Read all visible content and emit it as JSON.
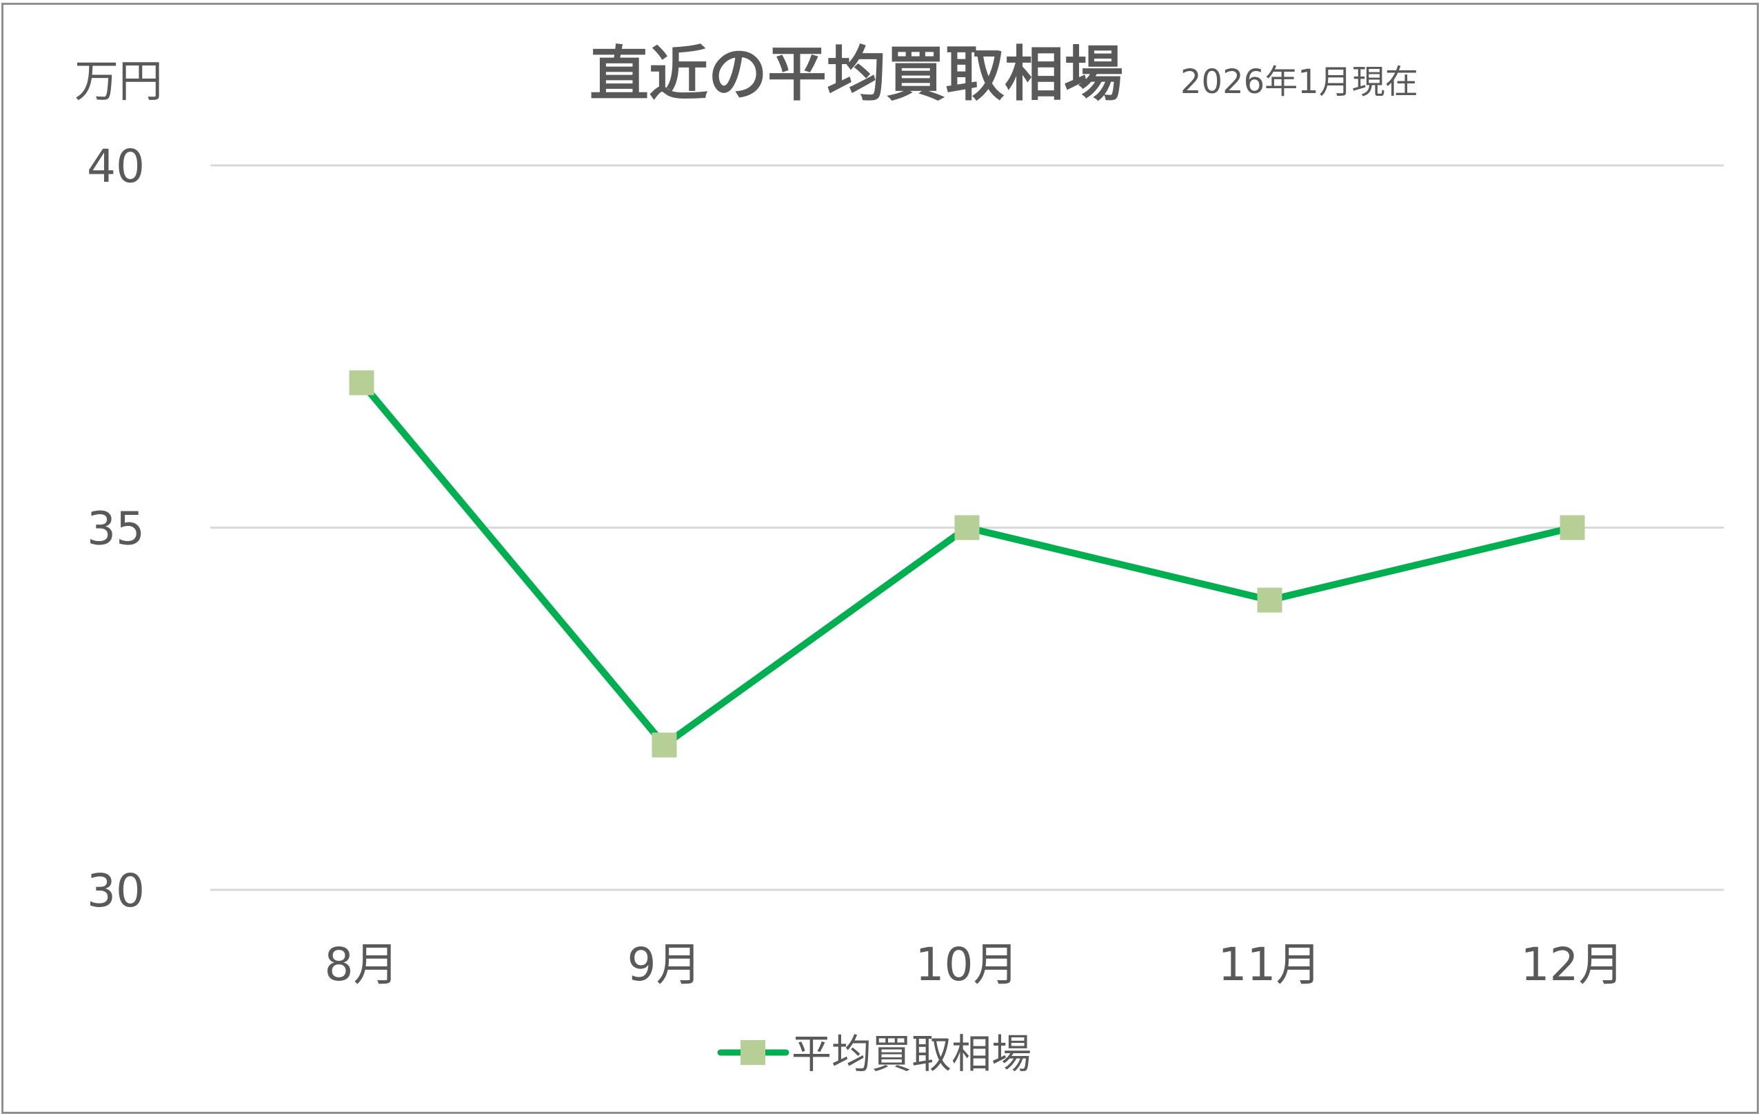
{
  "chart_data": {
    "type": "line",
    "title": "直近の平均買取相場",
    "subtitle": "2026年1月現在",
    "ylabel": "万円",
    "xlabel": "",
    "categories": [
      "8月",
      "9月",
      "10月",
      "11月",
      "12月"
    ],
    "series": [
      {
        "name": "平均買取相場",
        "values": [
          37,
          32,
          35,
          34,
          35
        ]
      }
    ],
    "ylim": [
      30,
      40
    ],
    "yticks": [
      "30",
      "35",
      "40"
    ],
    "grid": true,
    "legend": "bottom",
    "colors": {
      "line": "#00b050",
      "marker": "#b6cf96",
      "grid": "#d9d9d9",
      "text": "#595959"
    }
  }
}
